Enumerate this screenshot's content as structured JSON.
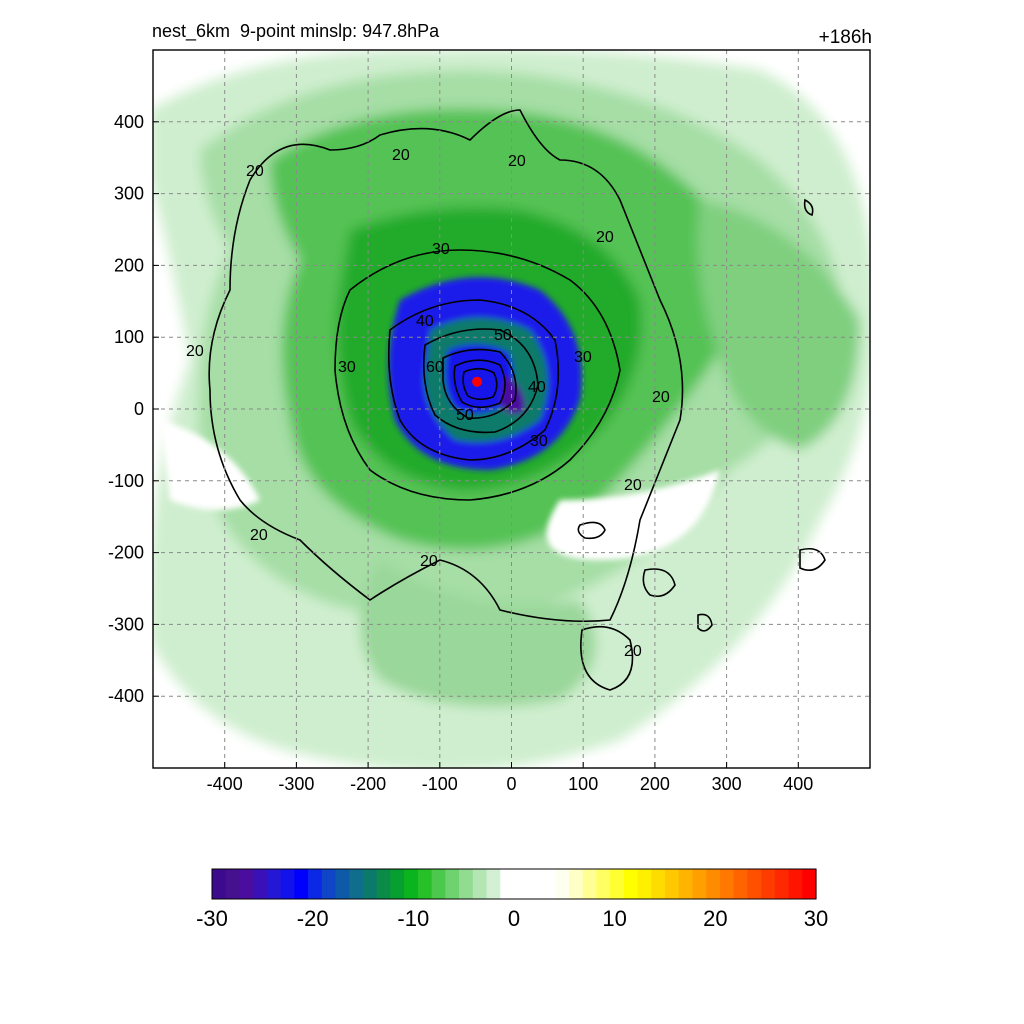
{
  "header": {
    "title": "nest_6km  9-point minslp: 947.8hPa",
    "time": "+186h"
  },
  "chart_data": {
    "type": "heatmap",
    "title": "nest_6km  9-point minslp: 947.8hPa",
    "time_label": "+186h",
    "x_range": [
      -500,
      500
    ],
    "y_range": [
      -500,
      500
    ],
    "x_ticks": [
      -400,
      -300,
      -200,
      -100,
      0,
      100,
      200,
      300,
      400
    ],
    "y_ticks": [
      400,
      300,
      200,
      100,
      0,
      -100,
      -200,
      -300,
      -400
    ],
    "grid": true,
    "storm_center": {
      "x": -48,
      "y": 38,
      "color": "#ff0000"
    },
    "contour_levels": [
      {
        "level": 20,
        "label": "20"
      },
      {
        "level": 30,
        "label": "30"
      },
      {
        "level": 40,
        "label": "40"
      },
      {
        "level": 50,
        "label": "50"
      },
      {
        "level": 60,
        "label": "60"
      }
    ],
    "colorbar": {
      "min": -30,
      "max": 30,
      "tick_values": [
        -30,
        -20,
        -10,
        0,
        10,
        20,
        30
      ],
      "tick_labels": [
        "-30",
        "-20",
        "-10",
        "0",
        "10",
        "20",
        "30"
      ],
      "colors": [
        "#3c0a8c",
        "#46118f",
        "#4b0d9e",
        "#3a10b8",
        "#2518d4",
        "#1212ea",
        "#0000ff",
        "#0a28e6",
        "#0f46c8",
        "#0f5aa8",
        "#0e6e8c",
        "#0c7a6a",
        "#0a8c48",
        "#07a030",
        "#0ab41e",
        "#28c028",
        "#4cc84c",
        "#6ed26e",
        "#92dc92",
        "#b4e6b4",
        "#d4f0d4",
        "#ffffff",
        "#ffffff",
        "#ffffff",
        "#ffffff",
        "#fffff0",
        "#ffffc8",
        "#ffff96",
        "#ffff64",
        "#ffff32",
        "#ffff00",
        "#fff000",
        "#ffdc00",
        "#ffc800",
        "#ffb400",
        "#ffa000",
        "#ff8c00",
        "#ff7800",
        "#ff6400",
        "#ff5000",
        "#ff3c00",
        "#ff2800",
        "#ff1400",
        "#ff0000"
      ]
    }
  }
}
